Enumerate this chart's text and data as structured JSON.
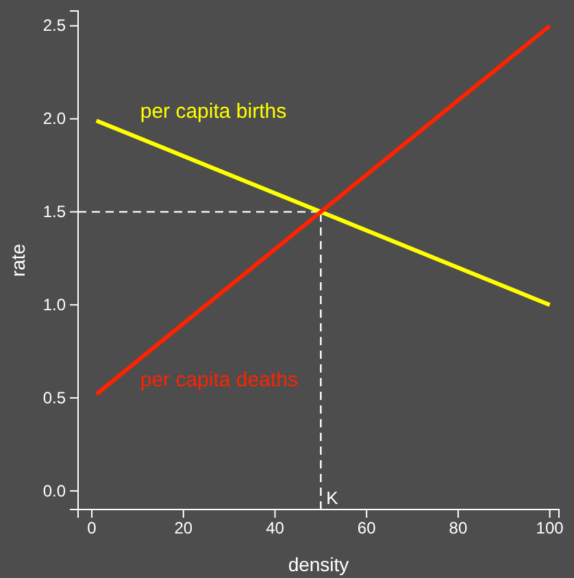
{
  "chart_data": {
    "type": "line",
    "xlabel": "density",
    "ylabel": "rate",
    "x": [
      1,
      100
    ],
    "series": [
      {
        "name": "per capita births",
        "color": "#ffff00",
        "values": [
          1.99,
          1.0
        ]
      },
      {
        "name": "per capita deaths",
        "color": "#ff2200",
        "values": [
          0.52,
          2.5
        ]
      }
    ],
    "xlim": [
      -3,
      102
    ],
    "ylim": [
      -0.1,
      2.58
    ],
    "xticks": [
      0,
      20,
      40,
      60,
      80,
      100
    ],
    "yticks": [
      {
        "value": 0,
        "label": "0.0"
      },
      {
        "value": 0.5,
        "label": "0.5"
      },
      {
        "value": 1,
        "label": "1.0"
      },
      {
        "value": 1.5,
        "label": "1.5"
      },
      {
        "value": 2,
        "label": "2.0"
      },
      {
        "value": 2.5,
        "label": "2.5"
      }
    ],
    "ref_lines": [
      {
        "axis": "x",
        "value": 50,
        "label": "K",
        "color": "#ffffff",
        "line_style": "dashed"
      },
      {
        "axis": "y",
        "value": 1.5,
        "label": null,
        "color": "#ffffff",
        "line_style": "dashed"
      }
    ],
    "grid": false,
    "legend": false,
    "marker": "none",
    "line_style": "solid"
  }
}
